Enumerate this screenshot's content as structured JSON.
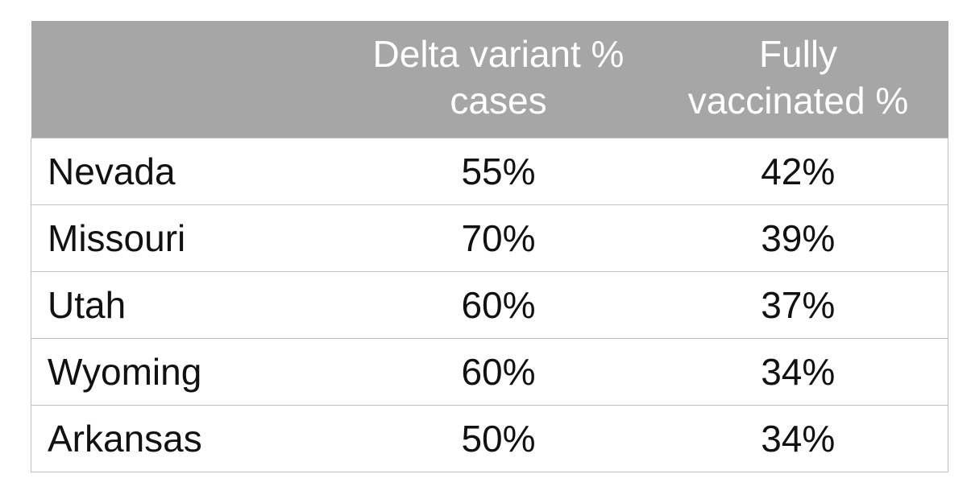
{
  "chart_data": {
    "type": "table",
    "columns": [
      "",
      "Delta variant % cases",
      "Fully vaccinated %"
    ],
    "header_lines": {
      "col1": [
        "Delta variant %",
        "cases"
      ],
      "col2": [
        "Fully",
        "vaccinated %"
      ]
    },
    "rows": [
      {
        "state": "Nevada",
        "delta": "55%",
        "vaccinated": "42%"
      },
      {
        "state": "Missouri",
        "delta": "70%",
        "vaccinated": "39%"
      },
      {
        "state": "Utah",
        "delta": "60%",
        "vaccinated": "37%"
      },
      {
        "state": "Wyoming",
        "delta": "60%",
        "vaccinated": "34%"
      },
      {
        "state": "Arkansas",
        "delta": "50%",
        "vaccinated": "34%"
      }
    ],
    "colors": {
      "header_bg": "#a6a6a6",
      "header_text": "#ffffff",
      "grid": "#bfbfbf",
      "body_text": "#111111"
    }
  }
}
